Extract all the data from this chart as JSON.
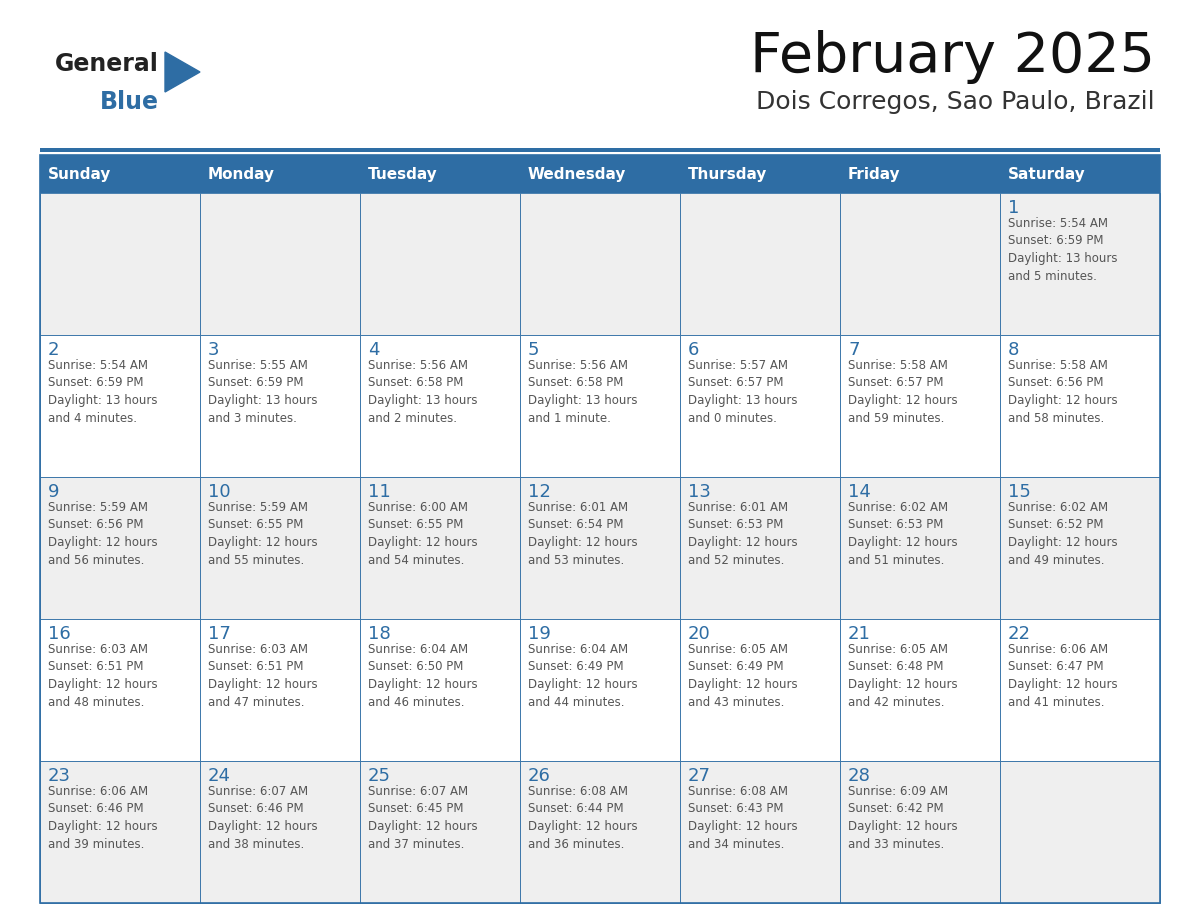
{
  "title": "February 2025",
  "subtitle": "Dois Corregos, Sao Paulo, Brazil",
  "header_bg": "#2E6DA4",
  "header_text_color": "#FFFFFF",
  "cell_bg_light": "#EFEFEF",
  "cell_bg_white": "#FFFFFF",
  "day_number_color": "#2E6DA4",
  "info_text_color": "#555555",
  "border_color": "#2E6DA4",
  "days_of_week": [
    "Sunday",
    "Monday",
    "Tuesday",
    "Wednesday",
    "Thursday",
    "Friday",
    "Saturday"
  ],
  "weeks": [
    [
      {
        "day": null,
        "info": ""
      },
      {
        "day": null,
        "info": ""
      },
      {
        "day": null,
        "info": ""
      },
      {
        "day": null,
        "info": ""
      },
      {
        "day": null,
        "info": ""
      },
      {
        "day": null,
        "info": ""
      },
      {
        "day": "1",
        "info": "Sunrise: 5:54 AM\nSunset: 6:59 PM\nDaylight: 13 hours\nand 5 minutes."
      }
    ],
    [
      {
        "day": "2",
        "info": "Sunrise: 5:54 AM\nSunset: 6:59 PM\nDaylight: 13 hours\nand 4 minutes."
      },
      {
        "day": "3",
        "info": "Sunrise: 5:55 AM\nSunset: 6:59 PM\nDaylight: 13 hours\nand 3 minutes."
      },
      {
        "day": "4",
        "info": "Sunrise: 5:56 AM\nSunset: 6:58 PM\nDaylight: 13 hours\nand 2 minutes."
      },
      {
        "day": "5",
        "info": "Sunrise: 5:56 AM\nSunset: 6:58 PM\nDaylight: 13 hours\nand 1 minute."
      },
      {
        "day": "6",
        "info": "Sunrise: 5:57 AM\nSunset: 6:57 PM\nDaylight: 13 hours\nand 0 minutes."
      },
      {
        "day": "7",
        "info": "Sunrise: 5:58 AM\nSunset: 6:57 PM\nDaylight: 12 hours\nand 59 minutes."
      },
      {
        "day": "8",
        "info": "Sunrise: 5:58 AM\nSunset: 6:56 PM\nDaylight: 12 hours\nand 58 minutes."
      }
    ],
    [
      {
        "day": "9",
        "info": "Sunrise: 5:59 AM\nSunset: 6:56 PM\nDaylight: 12 hours\nand 56 minutes."
      },
      {
        "day": "10",
        "info": "Sunrise: 5:59 AM\nSunset: 6:55 PM\nDaylight: 12 hours\nand 55 minutes."
      },
      {
        "day": "11",
        "info": "Sunrise: 6:00 AM\nSunset: 6:55 PM\nDaylight: 12 hours\nand 54 minutes."
      },
      {
        "day": "12",
        "info": "Sunrise: 6:01 AM\nSunset: 6:54 PM\nDaylight: 12 hours\nand 53 minutes."
      },
      {
        "day": "13",
        "info": "Sunrise: 6:01 AM\nSunset: 6:53 PM\nDaylight: 12 hours\nand 52 minutes."
      },
      {
        "day": "14",
        "info": "Sunrise: 6:02 AM\nSunset: 6:53 PM\nDaylight: 12 hours\nand 51 minutes."
      },
      {
        "day": "15",
        "info": "Sunrise: 6:02 AM\nSunset: 6:52 PM\nDaylight: 12 hours\nand 49 minutes."
      }
    ],
    [
      {
        "day": "16",
        "info": "Sunrise: 6:03 AM\nSunset: 6:51 PM\nDaylight: 12 hours\nand 48 minutes."
      },
      {
        "day": "17",
        "info": "Sunrise: 6:03 AM\nSunset: 6:51 PM\nDaylight: 12 hours\nand 47 minutes."
      },
      {
        "day": "18",
        "info": "Sunrise: 6:04 AM\nSunset: 6:50 PM\nDaylight: 12 hours\nand 46 minutes."
      },
      {
        "day": "19",
        "info": "Sunrise: 6:04 AM\nSunset: 6:49 PM\nDaylight: 12 hours\nand 44 minutes."
      },
      {
        "day": "20",
        "info": "Sunrise: 6:05 AM\nSunset: 6:49 PM\nDaylight: 12 hours\nand 43 minutes."
      },
      {
        "day": "21",
        "info": "Sunrise: 6:05 AM\nSunset: 6:48 PM\nDaylight: 12 hours\nand 42 minutes."
      },
      {
        "day": "22",
        "info": "Sunrise: 6:06 AM\nSunset: 6:47 PM\nDaylight: 12 hours\nand 41 minutes."
      }
    ],
    [
      {
        "day": "23",
        "info": "Sunrise: 6:06 AM\nSunset: 6:46 PM\nDaylight: 12 hours\nand 39 minutes."
      },
      {
        "day": "24",
        "info": "Sunrise: 6:07 AM\nSunset: 6:46 PM\nDaylight: 12 hours\nand 38 minutes."
      },
      {
        "day": "25",
        "info": "Sunrise: 6:07 AM\nSunset: 6:45 PM\nDaylight: 12 hours\nand 37 minutes."
      },
      {
        "day": "26",
        "info": "Sunrise: 6:08 AM\nSunset: 6:44 PM\nDaylight: 12 hours\nand 36 minutes."
      },
      {
        "day": "27",
        "info": "Sunrise: 6:08 AM\nSunset: 6:43 PM\nDaylight: 12 hours\nand 34 minutes."
      },
      {
        "day": "28",
        "info": "Sunrise: 6:09 AM\nSunset: 6:42 PM\nDaylight: 12 hours\nand 33 minutes."
      },
      {
        "day": null,
        "info": ""
      }
    ]
  ]
}
